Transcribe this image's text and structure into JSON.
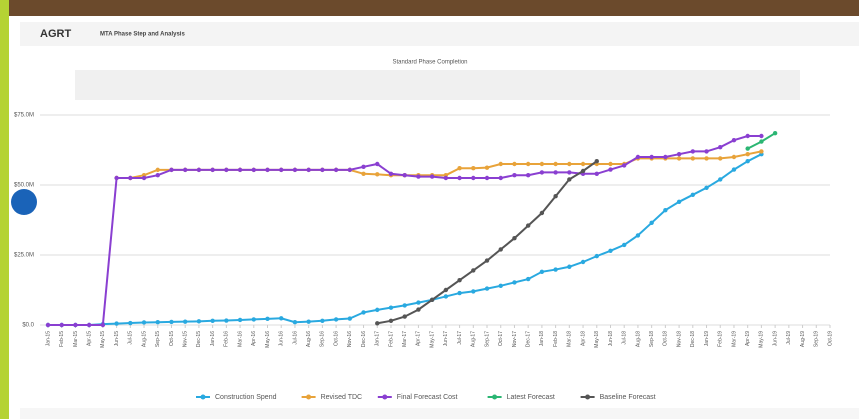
{
  "header": {
    "logo": "AGRT",
    "title": "MTA Phase Step and Analysis"
  },
  "chart_data": {
    "type": "line",
    "title": "Standard Phase Completion",
    "categories": [
      "Jan-15",
      "Feb-15",
      "Mar-15",
      "Apr-15",
      "May-15",
      "Jun-15",
      "Jul-15",
      "Aug-15",
      "Sep-15",
      "Oct-15",
      "Nov-15",
      "Dec-15",
      "Jan-16",
      "Feb-16",
      "Mar-16",
      "Apr-16",
      "May-16",
      "Jun-16",
      "Jul-16",
      "Aug-16",
      "Sep-16",
      "Oct-16",
      "Nov-16",
      "Dec-16",
      "Jan-17",
      "Feb-17",
      "Mar-17",
      "Apr-17",
      "May-17",
      "Jun-17",
      "Jul-17",
      "Aug-17",
      "Sep-17",
      "Oct-17",
      "Nov-17",
      "Dec-17",
      "Jan-18",
      "Feb-18",
      "Mar-18",
      "Apr-18",
      "May-18",
      "Jun-18",
      "Jul-18",
      "Aug-18",
      "Sep-18",
      "Oct-18",
      "Nov-18",
      "Dec-18",
      "Jan-19",
      "Feb-19",
      "Mar-19",
      "Apr-19",
      "May-19",
      "Jun-19",
      "Jul-19",
      "Aug-19",
      "Sep-19",
      "Oct-19"
    ],
    "series": [
      {
        "name": "Construction Spend",
        "color": "#29a9e0",
        "values": [
          0,
          0,
          0,
          0,
          0.3,
          0.5,
          0.7,
          0.9,
          1.0,
          1.1,
          1.2,
          1.3,
          1.5,
          1.6,
          1.8,
          2.0,
          2.2,
          2.4,
          1.0,
          1.2,
          1.5,
          2.0,
          2.3,
          4.5,
          5.4,
          6.2,
          7.0,
          8.0,
          9.0,
          10.2,
          11.4,
          12.0,
          13.0,
          14.0,
          15.2,
          16.4,
          19.0,
          19.8,
          20.8,
          22.5,
          24.6,
          26.5,
          28.6,
          32.0,
          36.5,
          41.0,
          44.0,
          46.5,
          49.0,
          52.0,
          55.5,
          58.5,
          61.0,
          null,
          null,
          null,
          null,
          null
        ]
      },
      {
        "name": "Revised TDC",
        "color": "#e8a33a",
        "values": [
          null,
          null,
          null,
          null,
          null,
          52.5,
          52.5,
          53.5,
          55.4,
          55.4,
          55.4,
          55.4,
          55.4,
          55.4,
          55.4,
          55.4,
          55.4,
          55.4,
          55.4,
          55.4,
          55.4,
          55.4,
          55.4,
          54,
          53.8,
          53.5,
          53.5,
          53.5,
          53.5,
          53.5,
          56,
          56,
          56.2,
          57.5,
          57.5,
          57.5,
          57.5,
          57.5,
          57.5,
          57.5,
          57.5,
          57.5,
          57.5,
          59.5,
          59.5,
          59.5,
          59.5,
          59.5,
          59.5,
          59.5,
          60,
          61,
          62,
          null,
          null,
          null,
          null,
          null
        ]
      },
      {
        "name": "Final Forecast Cost",
        "color": "#8a3fd1",
        "values": [
          0,
          0,
          0,
          0,
          0,
          52.5,
          52.5,
          52.5,
          53.5,
          55.4,
          55.4,
          55.4,
          55.4,
          55.4,
          55.4,
          55.4,
          55.4,
          55.4,
          55.4,
          55.4,
          55.4,
          55.4,
          55.4,
          56.5,
          57.5,
          54,
          53.5,
          53,
          53,
          52.5,
          52.5,
          52.5,
          52.5,
          52.5,
          53.5,
          53.5,
          54.5,
          54.5,
          54.5,
          54,
          54,
          55.5,
          57,
          60,
          60,
          60,
          61,
          62,
          62,
          63.5,
          66,
          67.5,
          67.5,
          null,
          null,
          null,
          null,
          null
        ]
      },
      {
        "name": "Latest Forecast",
        "color": "#2bb673",
        "values": [
          null,
          null,
          null,
          null,
          null,
          null,
          null,
          null,
          null,
          null,
          null,
          null,
          null,
          null,
          null,
          null,
          null,
          null,
          null,
          null,
          null,
          null,
          null,
          null,
          null,
          null,
          null,
          null,
          null,
          null,
          null,
          null,
          null,
          null,
          null,
          null,
          null,
          null,
          null,
          null,
          null,
          null,
          null,
          null,
          null,
          null,
          null,
          null,
          null,
          null,
          null,
          63,
          65.5,
          68.5,
          null,
          null,
          null,
          null
        ]
      },
      {
        "name": "Baseline Forecast",
        "color": "#555555",
        "values": [
          null,
          null,
          null,
          null,
          null,
          null,
          null,
          null,
          null,
          null,
          null,
          null,
          null,
          null,
          null,
          null,
          null,
          null,
          null,
          null,
          null,
          null,
          null,
          null,
          0.6,
          1.5,
          3,
          5.5,
          9,
          12.5,
          16,
          19.5,
          23,
          27,
          31,
          35.5,
          40,
          46,
          52,
          55,
          58.5,
          null,
          null,
          null,
          null,
          null,
          null,
          null,
          null,
          null,
          null,
          null,
          null,
          null,
          null,
          null,
          null,
          null
        ]
      }
    ],
    "ylim": [
      0,
      75
    ],
    "yticks": [
      {
        "value": 0,
        "label": "$0.0"
      },
      {
        "value": 25,
        "label": "$25.0M"
      },
      {
        "value": 50,
        "label": "$50.0M"
      },
      {
        "value": 75,
        "label": "$75.0M"
      }
    ],
    "grid": true,
    "legend": "bottom"
  }
}
